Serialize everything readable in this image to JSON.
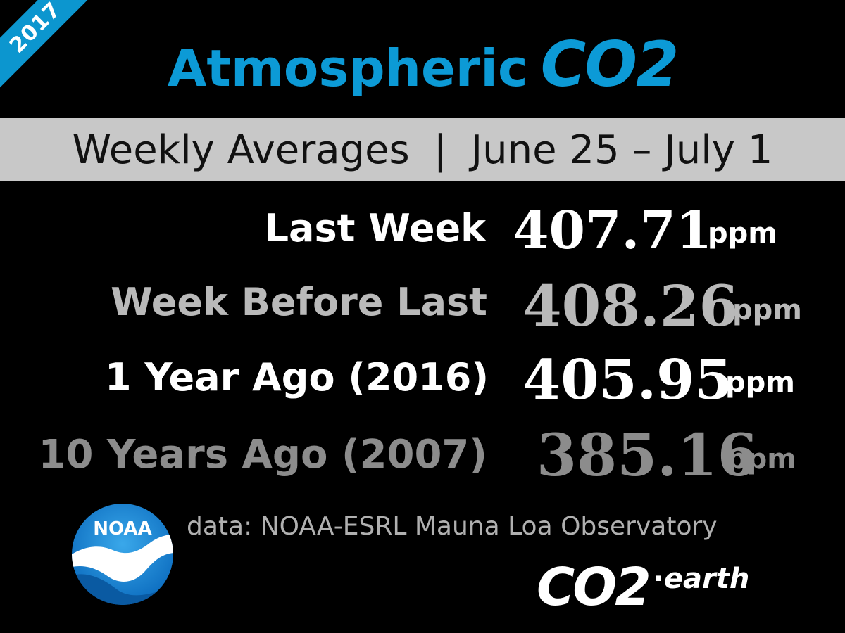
{
  "year_badge": "2017",
  "title": {
    "part1": "Atmospheric",
    "part2": "CO2"
  },
  "subtitle": {
    "left": "Weekly Averages",
    "separator": "|",
    "right": "June 25 – July 1"
  },
  "rows": [
    {
      "label": "Last Week",
      "value": "407.71",
      "unit": "ppm",
      "color": "#ffffff"
    },
    {
      "label": "Week Before Last",
      "value": "408.26",
      "unit": "ppm",
      "color": "#b9b9b9"
    },
    {
      "label": "1 Year Ago  (2016)",
      "value": "405.95",
      "unit": "ppm",
      "color": "#ffffff"
    },
    {
      "label": "10 Years Ago  (2007)",
      "value": "385.16",
      "unit": "ppm",
      "color": "#8c8c8c"
    }
  ],
  "logo": {
    "text": "NOAA",
    "icon": "noaa-logo-icon"
  },
  "source": "data: NOAA-ESRL Mauna Loa Observatory",
  "brand": {
    "part1": "CO2",
    "dot": "·",
    "part2": "earth"
  },
  "colors": {
    "accent": "#0c9ad6",
    "band": "#c8c8c8",
    "background": "#000000"
  }
}
